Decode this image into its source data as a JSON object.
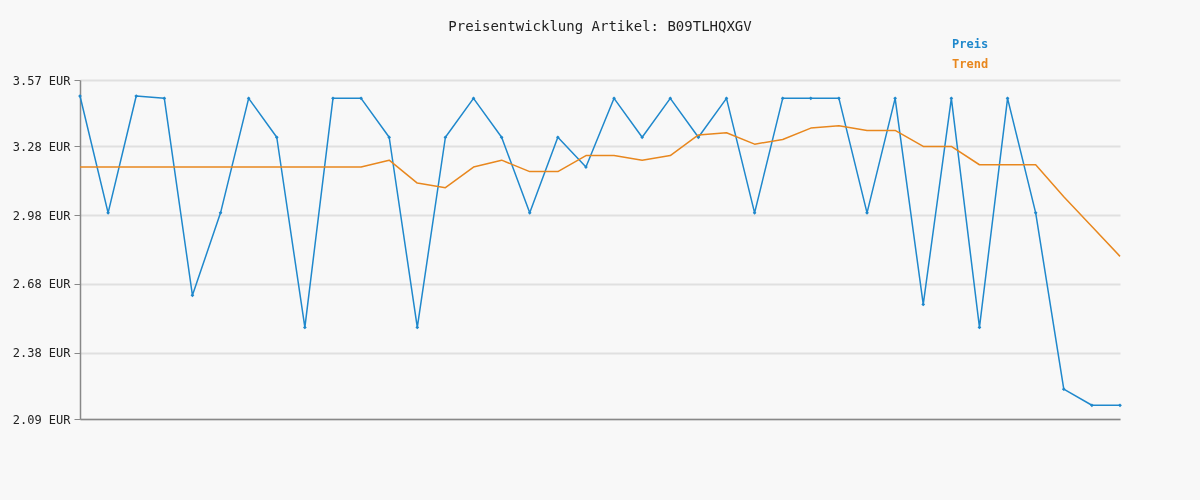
{
  "chart_data": {
    "type": "line",
    "title": "Preisentwicklung Artikel: B09TLHQXGV",
    "categories": [
      null,
      null,
      null,
      null,
      null,
      null,
      null,
      null,
      null,
      null,
      null,
      null,
      null,
      null,
      null,
      null,
      null,
      null,
      null,
      null,
      null,
      null,
      null,
      null,
      null,
      null,
      null,
      null,
      null,
      null,
      null,
      null,
      null,
      null,
      null,
      null,
      null,
      null
    ],
    "series": [
      {
        "name": "Preis",
        "color": "#1f88cc",
        "marker": "diamond",
        "values": [
          3.5,
          2.99,
          3.5,
          3.49,
          2.63,
          2.99,
          3.49,
          3.32,
          2.49,
          3.49,
          3.49,
          3.32,
          2.49,
          3.32,
          3.49,
          3.32,
          2.99,
          3.32,
          3.19,
          3.49,
          3.32,
          3.49,
          3.32,
          3.49,
          2.99,
          3.49,
          3.49,
          3.49,
          2.99,
          3.49,
          2.59,
          3.49,
          2.49,
          3.49,
          2.99,
          2.22,
          2.15,
          2.15
        ]
      },
      {
        "name": "Trend",
        "color": "#e8871e",
        "values": [
          3.19,
          3.19,
          3.19,
          3.19,
          3.19,
          3.19,
          3.19,
          3.19,
          3.19,
          3.19,
          3.19,
          3.22,
          3.12,
          3.1,
          3.19,
          3.22,
          3.17,
          3.17,
          3.24,
          3.24,
          3.22,
          3.24,
          3.33,
          3.34,
          3.29,
          3.31,
          3.36,
          3.37,
          3.35,
          3.35,
          3.28,
          3.28,
          3.2,
          3.2,
          3.2,
          3.06,
          2.93,
          2.8
        ]
      }
    ],
    "ylim": [
      2.09,
      3.57
    ],
    "yticks": [
      {
        "value": 2.09,
        "label": "2.09 EUR"
      },
      {
        "value": 2.38,
        "label": "2.38 EUR"
      },
      {
        "value": 2.68,
        "label": "2.68 EUR"
      },
      {
        "value": 2.98,
        "label": "2.98 EUR"
      },
      {
        "value": 3.28,
        "label": "3.28 EUR"
      },
      {
        "value": 3.57,
        "label": "3.57 EUR"
      }
    ],
    "grid": "y",
    "legend": "top right",
    "tick_labels": "y",
    "line_style": "solid"
  }
}
